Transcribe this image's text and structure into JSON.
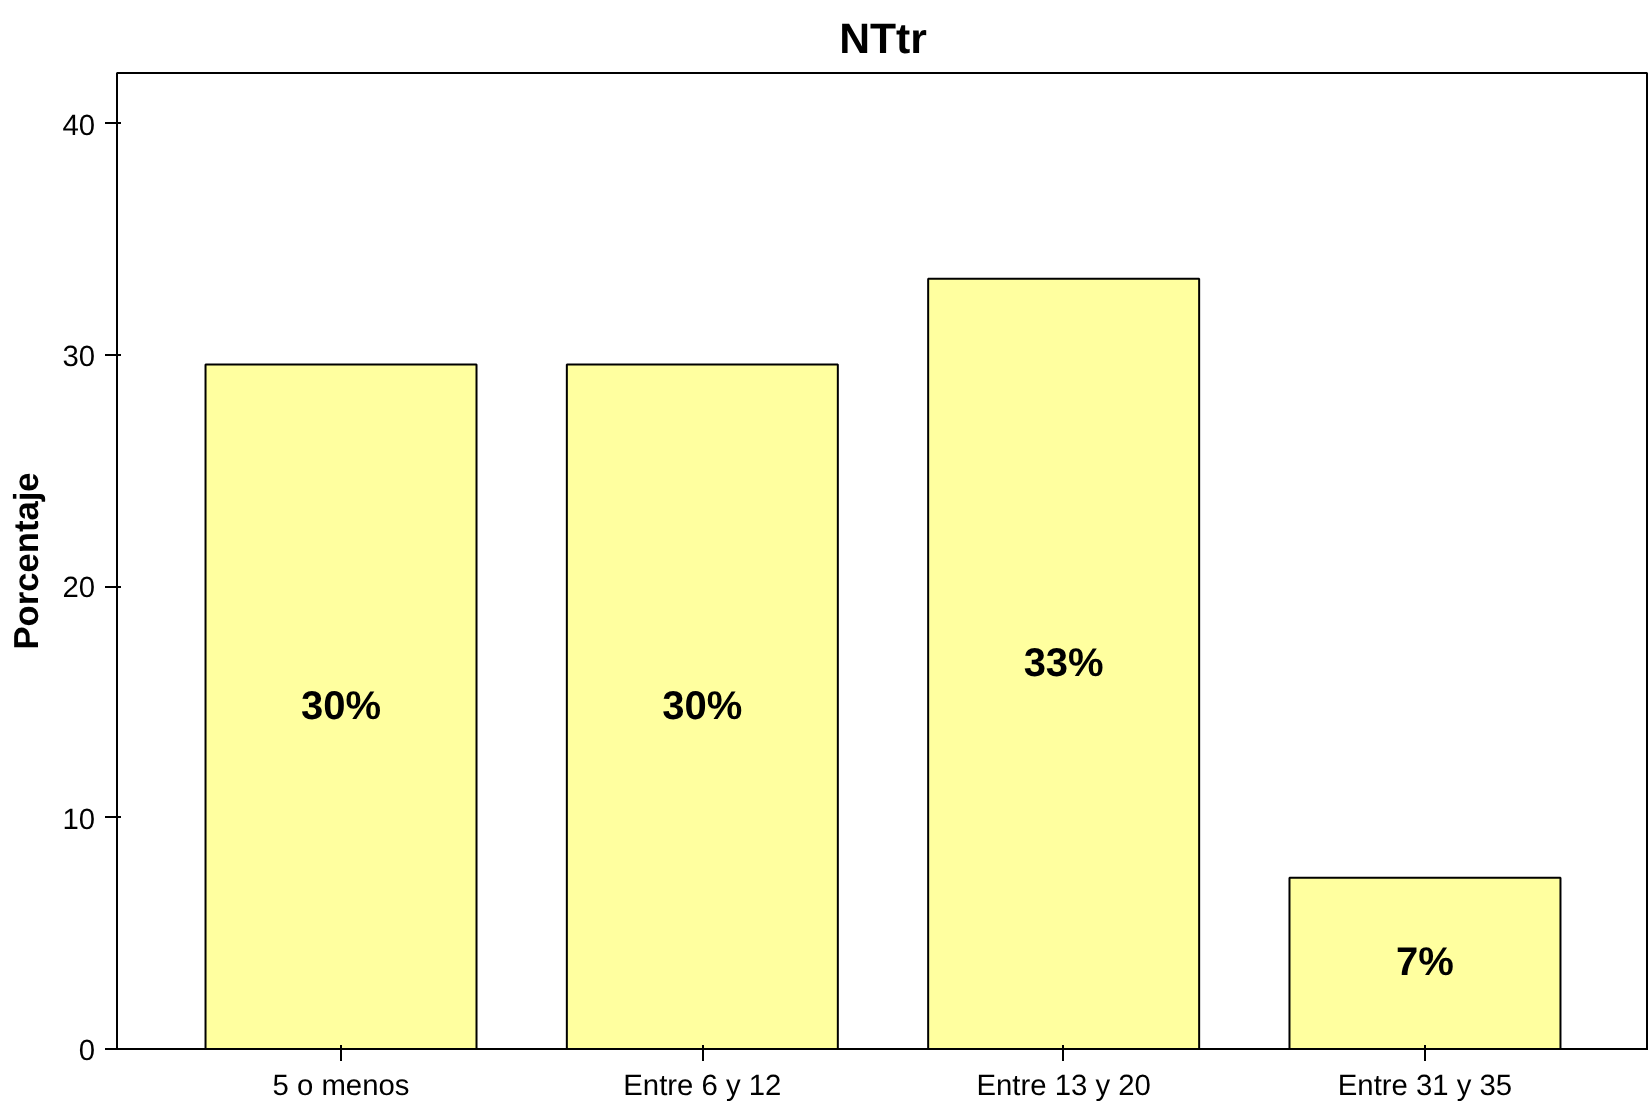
{
  "chart_data": {
    "type": "bar",
    "title": "NTtr",
    "ylabel": "Porcentaje",
    "categories": [
      "5 o menos",
      "Entre 6 y 12",
      "Entre 13 y 20",
      "Entre 31 y 35"
    ],
    "values": [
      29.6,
      29.6,
      33.3,
      7.4
    ],
    "value_labels": [
      "30%",
      "30%",
      "33%",
      "7%"
    ],
    "color": "#ffff9f",
    "ylim": [
      0,
      42.2
    ],
    "yticks": [
      0,
      10,
      20,
      30,
      40
    ],
    "grid": false
  }
}
